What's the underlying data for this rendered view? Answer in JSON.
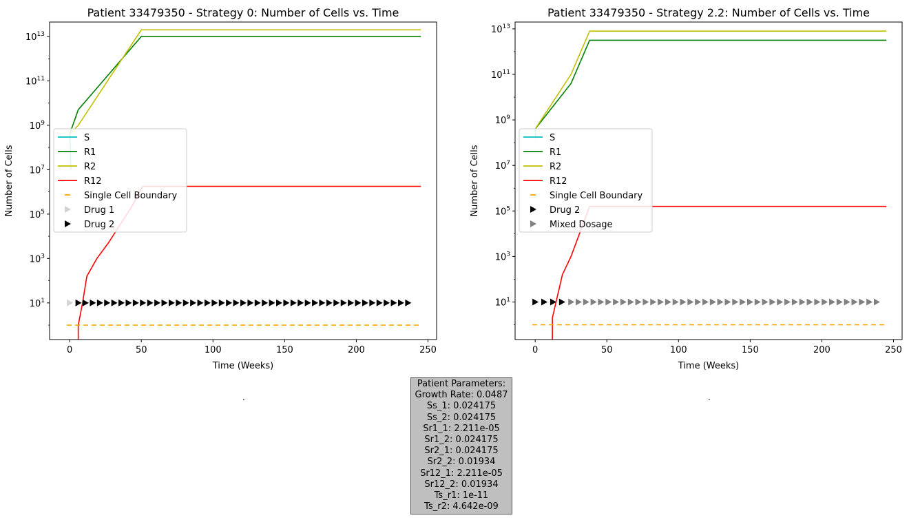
{
  "chart_data": [
    {
      "type": "line",
      "title": "Patient 33479350 - Strategy 0: Number of Cells vs. Time",
      "xlabel": "Time (Weeks)",
      "ylabel": "Number of Cells",
      "xlim": [
        -14,
        256
      ],
      "ylim_log10": [
        -0.65,
        13.65
      ],
      "yscale": "log",
      "xticks": [
        0,
        50,
        100,
        150,
        200,
        250
      ],
      "yticks_exp": [
        1,
        3,
        5,
        7,
        9,
        11,
        13
      ],
      "series": [
        {
          "name": "S",
          "color": "#00bfbf",
          "x": [
            0,
            0.4,
            0.8
          ],
          "log10_y": [
            8.6,
            8.0,
            7.0
          ]
        },
        {
          "name": "R1",
          "color": "#008000",
          "x": [
            0,
            6,
            50,
            245
          ],
          "log10_y": [
            8.6,
            9.7,
            13.0,
            13.0
          ]
        },
        {
          "name": "R2",
          "color": "#bfbf00",
          "x": [
            0,
            6,
            50,
            245
          ],
          "log10_y": [
            8.6,
            9.0,
            13.3,
            13.3
          ]
        },
        {
          "name": "R12",
          "color": "#ff0000",
          "x": [
            6,
            6,
            9,
            12,
            19,
            27,
            35,
            43,
            51,
            245
          ],
          "log10_y": [
            -1.5,
            0.0,
            1.0,
            2.2,
            3.0,
            3.7,
            4.5,
            5.3,
            6.25,
            6.25
          ]
        },
        {
          "name": "Single Cell Boundary",
          "color": "#ffa500",
          "dashed": true,
          "x": [
            -2,
            245
          ],
          "log10_y": [
            0,
            0
          ]
        }
      ],
      "markers": [
        {
          "name": "Drug 1",
          "color": "#d3d3d3",
          "x": [
            0
          ],
          "log10_y": 1
        },
        {
          "name": "Drug 2",
          "color": "#000000",
          "x_start": 6,
          "x_step": 5,
          "x_end": 240,
          "log10_y": 1
        }
      ],
      "legend": {
        "position": "center-left",
        "entries": [
          "S",
          "R1",
          "R2",
          "R12",
          "Single Cell Boundary",
          "Drug 1",
          "Drug 2"
        ]
      }
    },
    {
      "type": "line",
      "title": "Patient 33479350 - Strategy 2.2: Number of Cells vs. Time",
      "xlabel": "Time (Weeks)",
      "ylabel": "Number of Cells",
      "xlim": [
        -14,
        256
      ],
      "ylim_log10": [
        -0.65,
        13.3
      ],
      "yscale": "log",
      "xticks": [
        0,
        50,
        100,
        150,
        200,
        250
      ],
      "yticks_exp": [
        1,
        3,
        5,
        7,
        9,
        11,
        13
      ],
      "series": [
        {
          "name": "S",
          "color": "#00bfbf",
          "x": [
            0,
            0.4
          ],
          "log10_y": [
            8.6,
            8.2
          ]
        },
        {
          "name": "R1",
          "color": "#008000",
          "x": [
            0,
            25,
            38,
            245
          ],
          "log10_y": [
            8.6,
            10.6,
            12.5,
            12.5
          ]
        },
        {
          "name": "R2",
          "color": "#bfbf00",
          "x": [
            0,
            25,
            38,
            245
          ],
          "log10_y": [
            8.6,
            11.0,
            12.9,
            12.9
          ]
        },
        {
          "name": "R12",
          "color": "#ff0000",
          "x": [
            12,
            12,
            19,
            25,
            38,
            245
          ],
          "log10_y": [
            -1.5,
            0.3,
            2.2,
            3.0,
            5.2,
            5.2
          ]
        },
        {
          "name": "Single Cell Boundary",
          "color": "#ffa500",
          "dashed": true,
          "x": [
            -2,
            245
          ],
          "log10_y": [
            0,
            0
          ]
        }
      ],
      "markers": [
        {
          "name": "Drug 2",
          "color": "#000000",
          "x_start": 0,
          "x_step": 6.2,
          "x_end": 19,
          "log10_y": 1
        },
        {
          "name": "Mixed Dosage",
          "color": "#808080",
          "x_start": 25,
          "x_step": 5.2,
          "x_end": 240,
          "log10_y": 1
        }
      ],
      "legend": {
        "position": "center-left",
        "entries": [
          "S",
          "R1",
          "R2",
          "R12",
          "Single Cell Boundary",
          "Drug 2",
          "Mixed Dosage"
        ]
      }
    }
  ],
  "params": {
    "lines": [
      "Patient Parameters:",
      "Growth Rate: 0.0487",
      "Ss_1: 0.024175",
      "Ss_2: 0.024175",
      "Sr1_1: 2.211e-05",
      "Sr1_2: 0.024175",
      "Sr2_1: 0.024175",
      "Sr2_2: 0.01934",
      "Sr12_1: 2.211e-05",
      "Sr12_2: 0.01934",
      "Ts_r1: 1e-11",
      "Ts_r2: 4.642e-09"
    ]
  },
  "dot_left": ".",
  "dot_right": "."
}
